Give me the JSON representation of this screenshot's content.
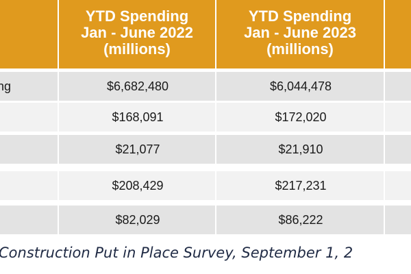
{
  "table": {
    "headers": [
      {
        "line1": "YTD Spending",
        "line2": "Jan - June 2022",
        "line3": "(millions)"
      },
      {
        "line1": "YTD Spending",
        "line2": "Jan - June 2023",
        "line3": "(millions)"
      }
    ],
    "rows": [
      {
        "label": "nding",
        "v2022": "$6,682,480",
        "v2023": "$6,044,478"
      },
      {
        "label": "",
        "v2022": "$168,091",
        "v2023": "$172,020"
      },
      {
        "label": "",
        "v2022": "$21,077",
        "v2023": "$21,910"
      },
      {
        "label": "",
        "v2022": "$208,429",
        "v2023": "$217,231"
      },
      {
        "label": "",
        "v2022": "$82,029",
        "v2023": "$86,222"
      }
    ]
  },
  "source_note": "Construction Put in Place Survey, September 1, 2",
  "colors": {
    "header_bg": "#e09a1e",
    "row_dark": "#e3e3e3",
    "row_light": "#f2f2f2"
  }
}
